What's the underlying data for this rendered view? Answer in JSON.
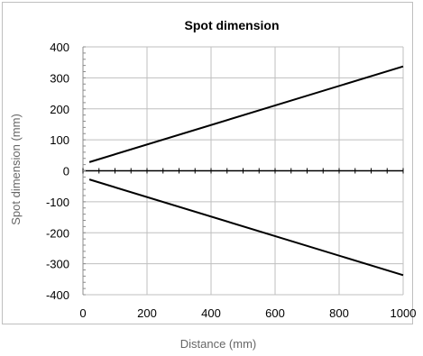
{
  "chart_data": {
    "type": "line",
    "title": "Spot dimension",
    "xlabel": "Distance (mm)",
    "ylabel": "Spot dimension (mm)",
    "xlim": [
      0,
      1000
    ],
    "ylim": [
      -400,
      400
    ],
    "xticks": [
      0,
      200,
      400,
      600,
      800,
      1000
    ],
    "yticks": [
      400,
      300,
      200,
      100,
      0,
      -100,
      -200,
      -300,
      -400
    ],
    "grid": true,
    "legend": "none",
    "series": [
      {
        "x": [
          20,
          1000
        ],
        "y": [
          28,
          337
        ],
        "color": "#000000"
      },
      {
        "x": [
          20,
          1000
        ],
        "y": [
          -28,
          -337
        ],
        "color": "#000000"
      }
    ]
  }
}
